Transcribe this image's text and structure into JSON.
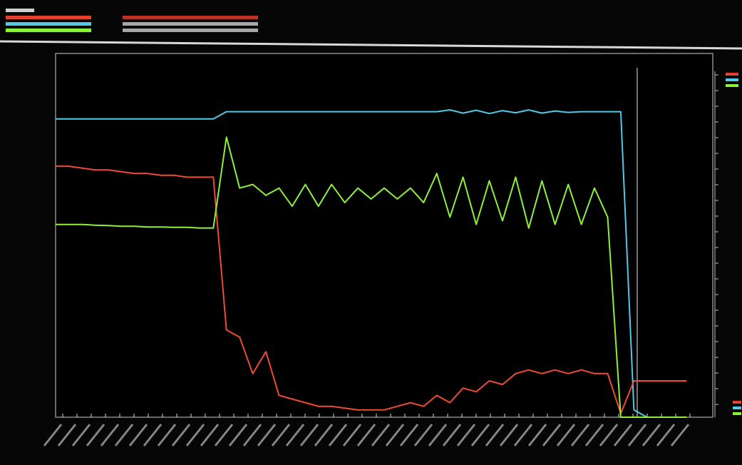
{
  "chart_data": {
    "type": "line",
    "x": [
      0,
      2,
      4,
      6,
      8,
      10,
      12,
      14,
      16,
      18,
      20,
      22,
      24,
      26,
      28,
      30,
      32,
      34,
      36,
      38,
      40,
      42,
      44,
      46,
      48,
      50,
      52,
      54,
      56,
      58,
      60,
      62,
      64,
      66,
      68,
      70,
      72,
      74,
      76,
      78,
      80,
      82,
      84,
      86,
      88,
      90,
      92,
      94,
      96
    ],
    "xlim": [
      0,
      100
    ],
    "ylim": [
      0,
      100
    ],
    "cursor_x": 88.5,
    "series": [
      {
        "color": "#55c8e6",
        "values": [
          82,
          82,
          82,
          82,
          82,
          82,
          82,
          82,
          82,
          82,
          82,
          82,
          82,
          84,
          84,
          84,
          84,
          84,
          84,
          84,
          84,
          84,
          84,
          84,
          84,
          84,
          84,
          84,
          84,
          84,
          84.5,
          83.6,
          84.4,
          83.5,
          84.3,
          83.7,
          84.5,
          83.6,
          84.2,
          83.8,
          84,
          84,
          84,
          84,
          2,
          0,
          0,
          0,
          0
        ]
      },
      {
        "color": "#f04a36",
        "values": [
          69,
          69,
          68.5,
          68,
          68,
          67.5,
          67,
          67,
          66.5,
          66.5,
          66,
          66,
          66,
          24,
          22,
          12,
          18,
          6,
          5,
          4,
          3,
          3,
          2.5,
          2,
          2,
          2,
          3,
          4,
          3,
          6,
          4,
          8,
          7,
          10,
          9,
          12,
          13,
          12,
          13,
          12,
          13,
          12,
          12,
          1,
          10,
          10,
          10,
          10,
          10
        ]
      },
      {
        "color": "#8ef03a",
        "values": [
          53,
          53,
          53,
          52.8,
          52.7,
          52.5,
          52.5,
          52.3,
          52.3,
          52.2,
          52.2,
          52,
          52,
          77,
          63,
          64,
          61,
          63,
          58,
          64,
          58,
          64,
          59,
          63,
          60,
          63,
          60,
          63,
          59,
          67,
          55,
          66,
          53,
          65,
          54,
          66,
          52,
          65,
          53,
          64,
          53,
          63,
          55,
          0,
          0,
          0,
          0,
          0,
          0
        ]
      }
    ]
  }
}
